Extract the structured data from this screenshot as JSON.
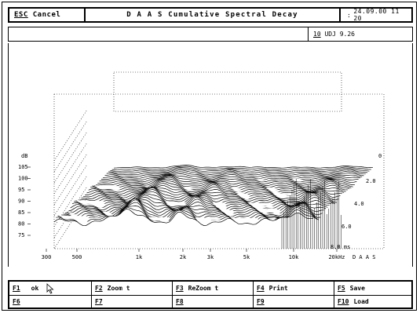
{
  "header": {
    "esc_key": "ESC",
    "esc_label": "Cancel",
    "title": "D A A S  Cumulative Spectral Decay",
    "datetime": "24.09.00 11 20"
  },
  "infobar": {
    "field_value": "",
    "key": "10",
    "value": "UDJ 9.26"
  },
  "plot": {
    "y_unit": "dB",
    "y_ticks": [
      "105",
      "100",
      "95",
      "90",
      "85",
      "80",
      "75"
    ],
    "x_ticks": [
      "300",
      "500",
      "1k",
      "2k",
      "3k",
      "5k",
      "10k",
      "20kHz"
    ],
    "z_ticks": [
      "0",
      "2.0",
      "4.0",
      "6.0",
      "8.0 ms"
    ],
    "brand": "D A A S",
    "line_color": "#000000",
    "grid_color": "#000000"
  },
  "fkeys": [
    {
      "key": "F1",
      "label": "ok"
    },
    {
      "key": "F2",
      "label": "Zoom t"
    },
    {
      "key": "F3",
      "label": "ReZoom t"
    },
    {
      "key": "F4",
      "label": "Print"
    },
    {
      "key": "F5",
      "label": "Save"
    },
    {
      "key": "F6",
      "label": ""
    },
    {
      "key": "F7",
      "label": ""
    },
    {
      "key": "F8",
      "label": ""
    },
    {
      "key": "F9",
      "label": ""
    },
    {
      "key": "F10",
      "label": "Load"
    }
  ],
  "icons": {
    "cursor": "mouse-pointer-icon"
  }
}
